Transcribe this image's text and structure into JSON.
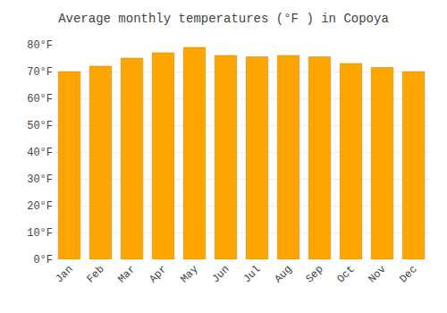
{
  "chart_data": {
    "type": "bar",
    "title": "Average monthly temperatures (°F ) in Copoya",
    "categories": [
      "Jan",
      "Feb",
      "Mar",
      "Apr",
      "May",
      "Jun",
      "Jul",
      "Aug",
      "Sep",
      "Oct",
      "Nov",
      "Dec"
    ],
    "values": [
      70,
      72,
      75,
      77,
      79,
      76,
      75.5,
      76,
      75.5,
      73,
      71.5,
      70
    ],
    "color": "#FFA500",
    "ylim": [
      0,
      80
    ],
    "yticks": [
      {
        "value": 0,
        "label": "0°F"
      },
      {
        "value": 10,
        "label": "10°F"
      },
      {
        "value": 20,
        "label": "20°F"
      },
      {
        "value": 30,
        "label": "30°F"
      },
      {
        "value": 40,
        "label": "40°F"
      },
      {
        "value": 50,
        "label": "50°F"
      },
      {
        "value": 60,
        "label": "60°F"
      },
      {
        "value": 70,
        "label": "70°F"
      },
      {
        "value": 80,
        "label": "80°F"
      }
    ],
    "grid": true
  }
}
